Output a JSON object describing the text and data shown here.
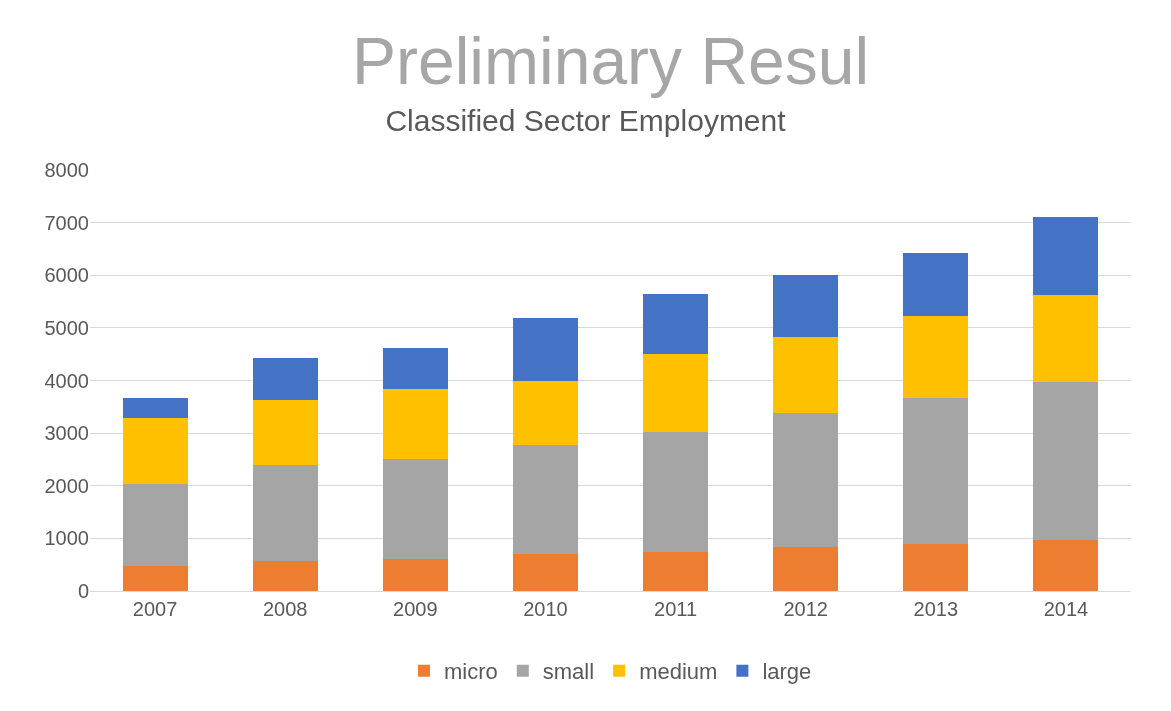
{
  "chart_data": {
    "type": "bar",
    "title": "Classified Sector Employment",
    "annotations": [
      "Preliminary Resul"
    ],
    "categories": [
      "2007",
      "2008",
      "2009",
      "2010",
      "2011",
      "2012",
      "2013",
      "2014"
    ],
    "stacked": true,
    "series": [
      {
        "name": "micro",
        "color": "#ed7d31",
        "values": [
          480,
          570,
          600,
          700,
          750,
          840,
          900,
          970
        ]
      },
      {
        "name": "small",
        "color": "#a5a5a5",
        "values": [
          1560,
          1820,
          1910,
          2070,
          2280,
          2540,
          2770,
          3010
        ]
      },
      {
        "name": "medium",
        "color": "#ffc000",
        "values": [
          1240,
          1240,
          1320,
          1230,
          1470,
          1450,
          1560,
          1650
        ]
      },
      {
        "name": "large",
        "color": "#4472c4",
        "values": [
          390,
          790,
          790,
          1190,
          1150,
          1170,
          1190,
          1470
        ]
      }
    ],
    "ylim": [
      0,
      8000
    ],
    "yticks": [
      0,
      1000,
      2000,
      3000,
      4000,
      5000,
      6000,
      7000,
      8000
    ],
    "grid": "y",
    "legend": "bottom"
  }
}
